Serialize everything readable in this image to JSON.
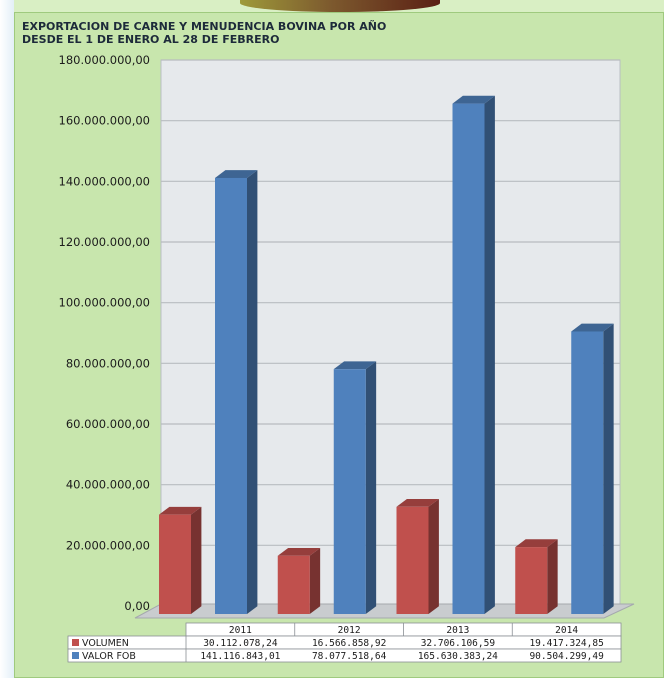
{
  "chart_data": {
    "type": "bar",
    "title_line1": "EXPORTACION DE CARNE Y MENUDENCIA BOVINA  POR AÑO",
    "title_line2": "DESDE EL 1  DE ENERO AL 28 DE FEBRERO",
    "categories": [
      "2011",
      "2012",
      "2013",
      "2014"
    ],
    "series": [
      {
        "name": "VOLUMEN",
        "color": "#c0504d",
        "values": [
          30112078.24,
          16566858.92,
          32706106.59,
          19417324.85
        ],
        "labels": [
          "30.112.078,24",
          "16.566.858,92",
          "32.706.106,59",
          "19.417.324,85"
        ]
      },
      {
        "name": "VALOR FOB",
        "color": "#4f81bd",
        "values": [
          141116843.01,
          78077518.64,
          165630383.24,
          90504299.49
        ],
        "labels": [
          "141.116.843,01",
          "78.077.518,64",
          "165.630.383,24",
          "90.504.299,49"
        ]
      }
    ],
    "ylim": [
      0,
      180000000
    ],
    "yticks": [
      0,
      20000000,
      40000000,
      60000000,
      80000000,
      100000000,
      120000000,
      140000000,
      160000000,
      180000000
    ],
    "ytick_labels": [
      "0,00",
      "20.000.000,00",
      "40.000.000,00",
      "60.000.000,00",
      "80.000.000,00",
      "100.000.000,00",
      "120.000.000,00",
      "140.000.000,00",
      "160.000.000,00",
      "180.000.000,00"
    ],
    "grid": true,
    "legend": "data-table-below"
  }
}
